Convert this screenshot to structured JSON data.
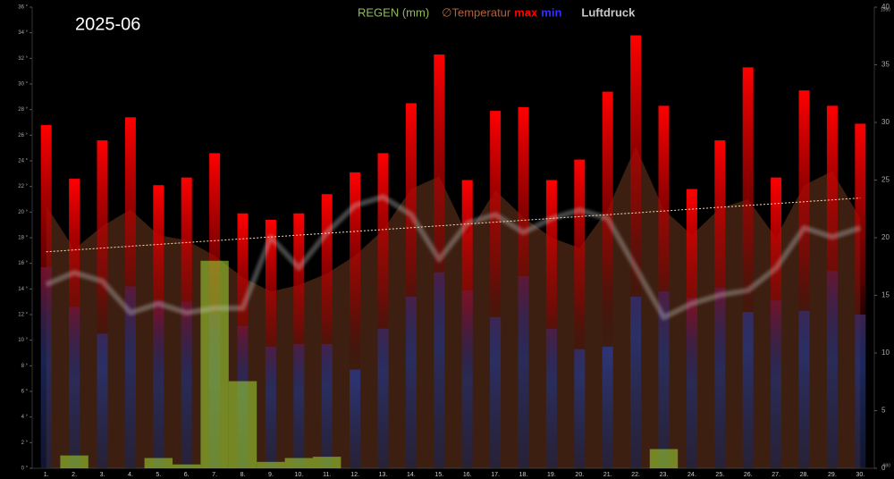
{
  "chart_data": {
    "type": "weather",
    "title": "2025-06",
    "categories": [
      "1.",
      "2.",
      "3.",
      "4.",
      "5.",
      "6.",
      "7.",
      "8.",
      "9.",
      "10.",
      "11.",
      "12.",
      "13.",
      "14.",
      "15.",
      "16.",
      "17.",
      "18.",
      "19.",
      "20.",
      "21.",
      "22.",
      "23.",
      "24.",
      "25.",
      "26.",
      "27.",
      "28.",
      "29.",
      "30."
    ],
    "series": [
      {
        "name": "REGEN (mm)",
        "kind": "rain",
        "color": "#9acd32",
        "values": [
          0,
          1.0,
          0,
          0,
          0.8,
          0.3,
          16.2,
          6.8,
          0.5,
          0.8,
          0.9,
          0,
          0,
          0,
          0,
          0,
          0,
          0,
          0,
          0,
          0,
          0,
          1.5,
          0,
          0,
          0,
          0,
          0,
          0,
          0
        ]
      },
      {
        "name": "∅Temperatur",
        "kind": "avg",
        "color": "#a0522d",
        "values": [
          20.5,
          17.1,
          18.9,
          20.2,
          18.2,
          17.8,
          16.6,
          14.9,
          13.8,
          14.3,
          15.2,
          16.6,
          18.6,
          21.8,
          22.8,
          18.2,
          21.7,
          19.6,
          18.0,
          17.2,
          20.2,
          25.1,
          20.2,
          18.2,
          20.3,
          21.0,
          18.0,
          22.1,
          23.2,
          19.5
        ]
      },
      {
        "name": "max",
        "kind": "max",
        "color": "#ff0000",
        "values": [
          26.8,
          22.6,
          25.6,
          27.4,
          22.1,
          22.7,
          24.6,
          19.9,
          19.4,
          19.9,
          21.4,
          23.1,
          24.6,
          28.5,
          32.3,
          22.5,
          27.9,
          28.2,
          22.5,
          24.1,
          29.4,
          33.8,
          28.3,
          21.8,
          25.6,
          31.3,
          22.7,
          29.5,
          28.3,
          26.9
        ]
      },
      {
        "name": "min",
        "kind": "min",
        "color": "#2020ff",
        "values": [
          15.7,
          12.6,
          10.5,
          14.2,
          13.1,
          13.0,
          12.1,
          11.1,
          9.5,
          9.7,
          9.7,
          7.7,
          10.9,
          13.4,
          15.3,
          13.9,
          11.8,
          15.0,
          10.9,
          9.3,
          9.5,
          13.4,
          13.8,
          13.3,
          14.1,
          12.2,
          13.1,
          12.3,
          15.4,
          12.0
        ]
      },
      {
        "name": "Luftdruck",
        "kind": "pressure",
        "axis": "y3",
        "color": "#c8c8c8",
        "values": [
          1007.9,
          1009.7,
          1008.4,
          1003.6,
          1005.0,
          1003.6,
          1004.3,
          1004.3,
          1015.1,
          1010.4,
          1015.8,
          1019.9,
          1021.2,
          1018.5,
          1011.7,
          1017.2,
          1018.5,
          1015.8,
          1017.9,
          1019.2,
          1017.9,
          1010.4,
          1002.9,
          1005.0,
          1006.3,
          1007.0,
          1010.4,
          1016.5,
          1015.1,
          1016.5
        ]
      }
    ],
    "trend": {
      "x": [
        1,
        30
      ],
      "values": [
        16.9,
        21.1
      ],
      "color": "#f5deb3"
    },
    "ylim": [
      0,
      36
    ],
    "yticks": [
      {
        "value": 0,
        "label": "0 °"
      },
      {
        "value": 2,
        "label": "2 °"
      },
      {
        "value": 4,
        "label": "4 °"
      },
      {
        "value": 6,
        "label": "6 °"
      },
      {
        "value": 8,
        "label": "8 °"
      },
      {
        "value": 10,
        "label": "10 °"
      },
      {
        "value": 12,
        "label": "12 °"
      },
      {
        "value": 14,
        "label": "14 °"
      },
      {
        "value": 16,
        "label": "16 °"
      },
      {
        "value": 18,
        "label": "18 °"
      },
      {
        "value": 20,
        "label": "20 °"
      },
      {
        "value": 22,
        "label": "22 °"
      },
      {
        "value": 24,
        "label": "24 °"
      },
      {
        "value": 26,
        "label": "26 °"
      },
      {
        "value": 28,
        "label": "28 °"
      },
      {
        "value": 30,
        "label": "30 °"
      },
      {
        "value": 32,
        "label": "32 °"
      },
      {
        "value": 34,
        "label": "34 °"
      },
      {
        "value": 36,
        "label": "36 °"
      }
    ],
    "y2lim": [
      0,
      40
    ],
    "y2ticks": [
      0,
      5,
      10,
      15,
      20,
      25,
      30,
      35,
      40
    ],
    "y3lim": [
      980,
      1050
    ],
    "y3ticks": [
      980,
      1050
    ]
  }
}
